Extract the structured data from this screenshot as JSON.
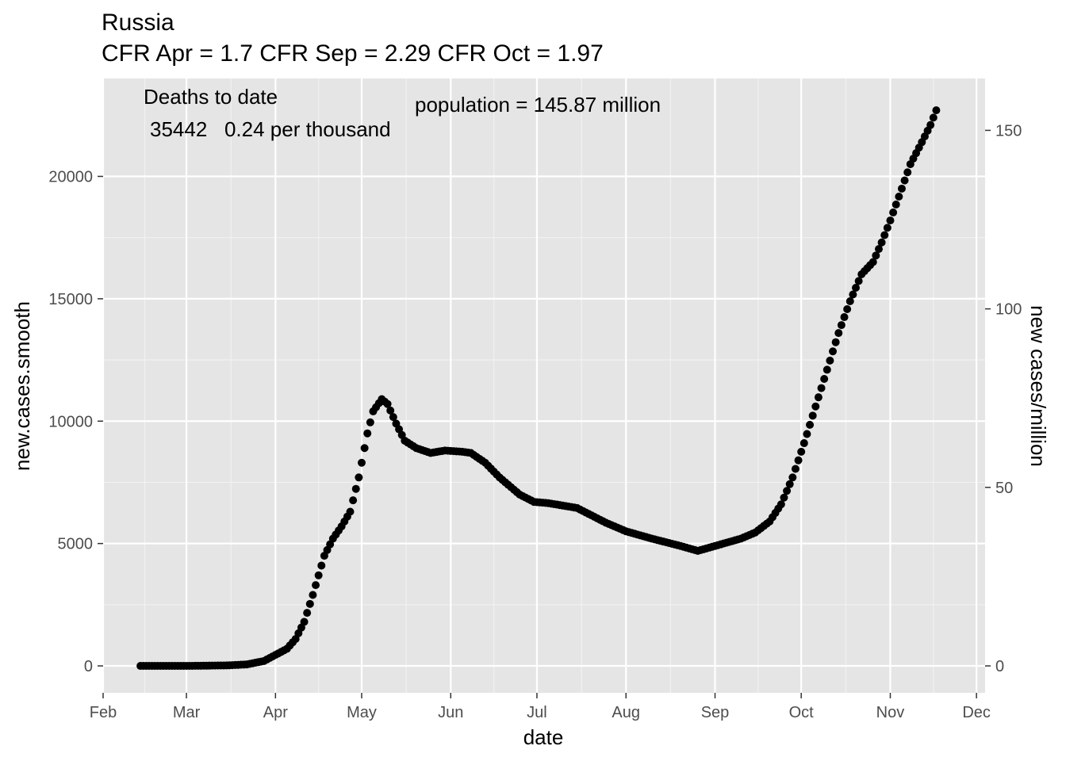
{
  "chart_data": {
    "type": "scatter",
    "title": "Russia",
    "subtitle": "CFR Apr = 1.7  CFR Sep = 2.29  CFR Oct = 1.97",
    "xlabel": "date",
    "ylabel": "new.cases.smooth",
    "y2label": "new cases/million",
    "annotations": {
      "deaths_heading": "Deaths to date",
      "deaths_value": "35442   0.24 per thousand",
      "population": "population = 145.87 million"
    },
    "x_ticks": [
      "Feb",
      "Mar",
      "Apr",
      "May",
      "Jun",
      "Jul",
      "Aug",
      "Sep",
      "Oct",
      "Nov",
      "Dec"
    ],
    "x_tick_dates": [
      "2020-02-01",
      "2020-03-01",
      "2020-04-01",
      "2020-05-01",
      "2020-06-01",
      "2020-07-01",
      "2020-08-01",
      "2020-09-01",
      "2020-10-01",
      "2020-11-01",
      "2020-12-01"
    ],
    "y_ticks": [
      0,
      5000,
      10000,
      15000,
      20000
    ],
    "y2_ticks": [
      0,
      50,
      100,
      150
    ],
    "population_millions": 145.87,
    "xlim": [
      "2020-02-01",
      "2020-12-04"
    ],
    "ylim": [
      -1100,
      24000
    ],
    "grid": true,
    "background": "#e5e5e5",
    "point_color": "#000000",
    "key_points": [
      [
        "2020-02-14",
        0
      ],
      [
        "2020-03-01",
        0
      ],
      [
        "2020-03-15",
        20
      ],
      [
        "2020-03-22",
        60
      ],
      [
        "2020-03-28",
        200
      ],
      [
        "2020-04-01",
        450
      ],
      [
        "2020-04-05",
        700
      ],
      [
        "2020-04-08",
        1100
      ],
      [
        "2020-04-11",
        1800
      ],
      [
        "2020-04-14",
        2900
      ],
      [
        "2020-04-16",
        3700
      ],
      [
        "2020-04-18",
        4500
      ],
      [
        "2020-04-21",
        5200
      ],
      [
        "2020-04-24",
        5700
      ],
      [
        "2020-04-27",
        6300
      ],
      [
        "2020-04-30",
        7700
      ],
      [
        "2020-05-03",
        9500
      ],
      [
        "2020-05-05",
        10400
      ],
      [
        "2020-05-08",
        10900
      ],
      [
        "2020-05-10",
        10700
      ],
      [
        "2020-05-13",
        9900
      ],
      [
        "2020-05-16",
        9200
      ],
      [
        "2020-05-20",
        8900
      ],
      [
        "2020-05-25",
        8700
      ],
      [
        "2020-05-30",
        8800
      ],
      [
        "2020-06-05",
        8750
      ],
      [
        "2020-06-08",
        8700
      ],
      [
        "2020-06-13",
        8300
      ],
      [
        "2020-06-18",
        7700
      ],
      [
        "2020-06-25",
        7000
      ],
      [
        "2020-06-30",
        6700
      ],
      [
        "2020-07-05",
        6650
      ],
      [
        "2020-07-10",
        6550
      ],
      [
        "2020-07-15",
        6450
      ],
      [
        "2020-07-20",
        6150
      ],
      [
        "2020-07-25",
        5850
      ],
      [
        "2020-08-01",
        5500
      ],
      [
        "2020-08-10",
        5200
      ],
      [
        "2020-08-20",
        4900
      ],
      [
        "2020-08-26",
        4700
      ],
      [
        "2020-09-01",
        4900
      ],
      [
        "2020-09-10",
        5200
      ],
      [
        "2020-09-15",
        5450
      ],
      [
        "2020-09-20",
        5900
      ],
      [
        "2020-09-24",
        6600
      ],
      [
        "2020-09-28",
        7700
      ],
      [
        "2020-10-02",
        9100
      ],
      [
        "2020-10-06",
        10600
      ],
      [
        "2020-10-10",
        12100
      ],
      [
        "2020-10-14",
        13600
      ],
      [
        "2020-10-18",
        14900
      ],
      [
        "2020-10-22",
        16000
      ],
      [
        "2020-10-26",
        16500
      ],
      [
        "2020-10-29",
        17300
      ],
      [
        "2020-11-01",
        18200
      ],
      [
        "2020-11-05",
        19500
      ],
      [
        "2020-11-08",
        20500
      ],
      [
        "2020-11-12",
        21400
      ],
      [
        "2020-11-15",
        22100
      ],
      [
        "2020-11-17",
        22700
      ]
    ]
  }
}
